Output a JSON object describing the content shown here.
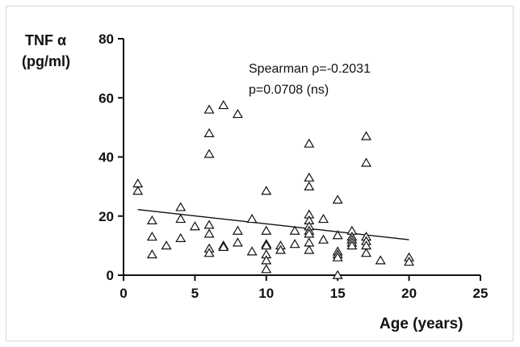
{
  "chart_data": {
    "type": "scatter",
    "ylabel_line1": "TNF α",
    "ylabel_line2": "(pg/ml)",
    "xlabel": "Age (years)",
    "xlim": [
      0,
      25
    ],
    "ylim": [
      0,
      80
    ],
    "xticks": [
      0,
      5,
      10,
      15,
      20,
      25
    ],
    "yticks": [
      0,
      20,
      40,
      60,
      80
    ],
    "annotation_line1": "Spearman ρ=-0.2031",
    "annotation_line2": "p=0.0708 (ns)",
    "marker": "open-triangle",
    "grid": false,
    "trendline": {
      "x": [
        1,
        20
      ],
      "y": [
        22.2,
        12.0
      ]
    },
    "points": [
      [
        1,
        31
      ],
      [
        1,
        28.5
      ],
      [
        2,
        18.5
      ],
      [
        2,
        13
      ],
      [
        2,
        7
      ],
      [
        3,
        10
      ],
      [
        4,
        23
      ],
      [
        4,
        19
      ],
      [
        4,
        12.5
      ],
      [
        5,
        16.5
      ],
      [
        6,
        56
      ],
      [
        6,
        48
      ],
      [
        6,
        41
      ],
      [
        6,
        17
      ],
      [
        6,
        14
      ],
      [
        6,
        9
      ],
      [
        6,
        7.5
      ],
      [
        7,
        57.5
      ],
      [
        7,
        10
      ],
      [
        7,
        9.5
      ],
      [
        8,
        54.5
      ],
      [
        8,
        15
      ],
      [
        8,
        11
      ],
      [
        9,
        19
      ],
      [
        9,
        8
      ],
      [
        10,
        28.5
      ],
      [
        10,
        15
      ],
      [
        10,
        10.5
      ],
      [
        10,
        10
      ],
      [
        10,
        7
      ],
      [
        10,
        5
      ],
      [
        10,
        2
      ],
      [
        11,
        10
      ],
      [
        11,
        8.5
      ],
      [
        12,
        15
      ],
      [
        12,
        10.5
      ],
      [
        13,
        44.5
      ],
      [
        13,
        33
      ],
      [
        13,
        30
      ],
      [
        13,
        20.5
      ],
      [
        13,
        18.5
      ],
      [
        13,
        16.5
      ],
      [
        13,
        15
      ],
      [
        13,
        14
      ],
      [
        13,
        11
      ],
      [
        13,
        8.5
      ],
      [
        14,
        19
      ],
      [
        14,
        12
      ],
      [
        15,
        25.5
      ],
      [
        15,
        13.5
      ],
      [
        15,
        8
      ],
      [
        15,
        7
      ],
      [
        15,
        6
      ],
      [
        15,
        0
      ],
      [
        16,
        15
      ],
      [
        16,
        13
      ],
      [
        16,
        12
      ],
      [
        16,
        11
      ],
      [
        16,
        10
      ],
      [
        17,
        47
      ],
      [
        17,
        38
      ],
      [
        17,
        13
      ],
      [
        17,
        11.5
      ],
      [
        17,
        10
      ],
      [
        17,
        7.5
      ],
      [
        18,
        5
      ],
      [
        20,
        6
      ],
      [
        20,
        4.5
      ]
    ]
  }
}
